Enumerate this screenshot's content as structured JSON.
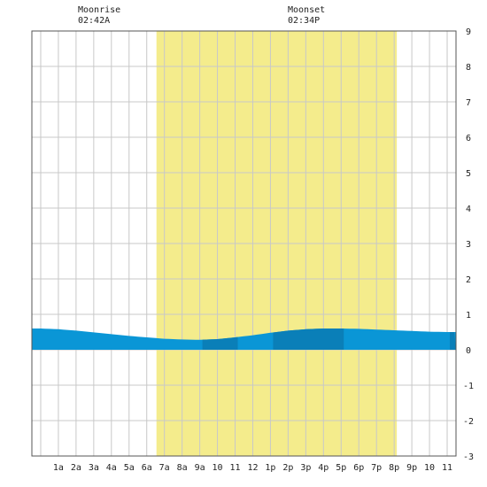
{
  "header": {
    "moonrise_label": "Moonrise",
    "moonrise_time": "02:42A",
    "moonset_label": "Moonset",
    "moonset_time": "02:34P"
  },
  "chart_data": {
    "type": "area",
    "x_unit": "hour of day",
    "x": [
      0,
      1,
      2,
      3,
      4,
      5,
      6,
      7,
      8,
      9,
      10,
      11,
      12,
      13,
      14,
      15,
      16,
      17,
      18,
      19,
      20,
      21,
      22,
      23,
      24
    ],
    "y": [
      0.6,
      0.58,
      0.54,
      0.49,
      0.44,
      0.39,
      0.35,
      0.31,
      0.29,
      0.28,
      0.3,
      0.35,
      0.41,
      0.48,
      0.54,
      0.58,
      0.6,
      0.6,
      0.59,
      0.57,
      0.55,
      0.53,
      0.51,
      0.5,
      0.5
    ],
    "xlim": [
      -0.5,
      23.5
    ],
    "ylim": [
      -3,
      9
    ],
    "x_tick_labels": [
      "1a",
      "2a",
      "3a",
      "4a",
      "5a",
      "6a",
      "7a",
      "8a",
      "9a",
      "10",
      "11",
      "12",
      "1p",
      "2p",
      "3p",
      "4p",
      "5p",
      "6p",
      "7p",
      "8p",
      "9p",
      "10",
      "11"
    ],
    "x_tick_positions": [
      1,
      2,
      3,
      4,
      5,
      6,
      7,
      8,
      9,
      10,
      11,
      12,
      13,
      14,
      15,
      16,
      17,
      18,
      19,
      20,
      21,
      22,
      23
    ],
    "y_ticks": [
      -3,
      -2,
      -1,
      0,
      1,
      2,
      3,
      4,
      5,
      6,
      7,
      8,
      9
    ],
    "daylight": [
      6.55,
      20.15
    ],
    "moonrise_hour": 2.7,
    "moonset_hour": 14.57,
    "shade_bands": [
      [
        9.15,
        11.15
      ],
      [
        13.15,
        17.15
      ],
      [
        23.15,
        24
      ]
    ],
    "grid": true,
    "colors": {
      "water": "#0a96d6",
      "water_dark": "#0a7fb8",
      "daylight": "#f4ec8c",
      "grid": "#c8c8c8",
      "axis": "#555555"
    }
  }
}
